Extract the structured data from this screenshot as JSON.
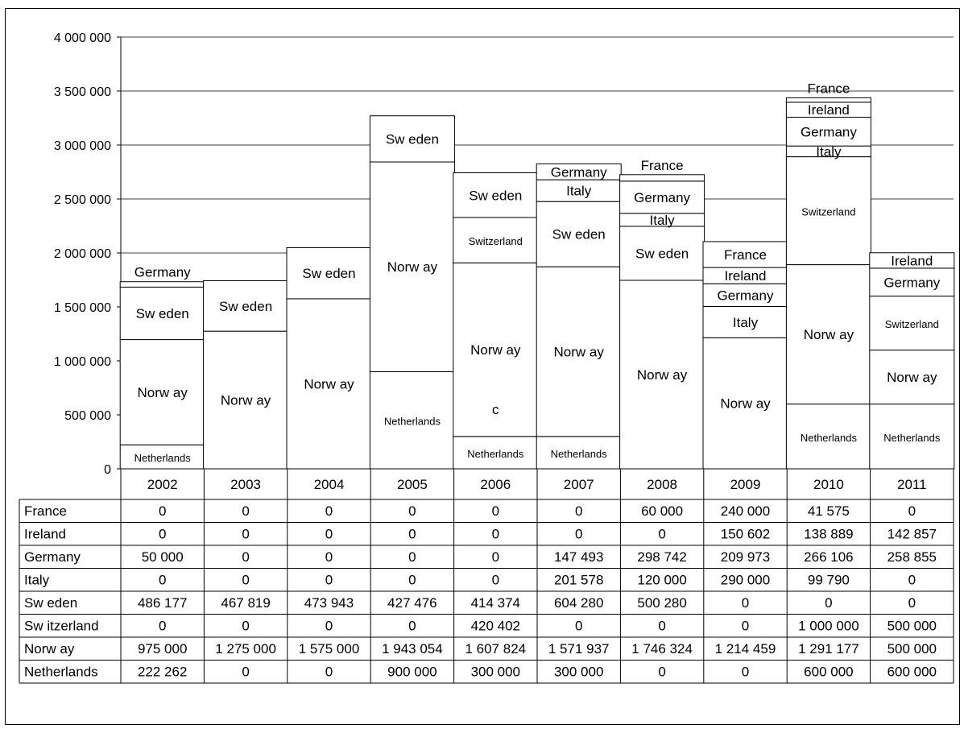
{
  "chart_data": {
    "type": "bar",
    "stacked": true,
    "categories": [
      "2002",
      "2003",
      "2004",
      "2005",
      "2006",
      "2007",
      "2008",
      "2009",
      "2010",
      "2011"
    ],
    "ylim": [
      0,
      4000000
    ],
    "yticks": [
      0,
      500000,
      1000000,
      1500000,
      2000000,
      2500000,
      3000000,
      3500000,
      4000000
    ],
    "ytick_labels": [
      "0",
      "500 000",
      "1 000 000",
      "1 500 000",
      "2 000 000",
      "2 500 000",
      "3 000 000",
      "3 500 000",
      "4 000 000"
    ],
    "grid": true,
    "series": [
      {
        "name": "Netherlands",
        "values": [
          222262,
          0,
          0,
          900000,
          300000,
          300000,
          0,
          0,
          600000,
          600000
        ],
        "value_labels": [
          "222 262",
          "0",
          "0",
          "900 000",
          "300 000",
          "300 000",
          "0",
          "0",
          "600 000",
          "600 000"
        ]
      },
      {
        "name": "Norw ay",
        "values": [
          975000,
          1275000,
          1575000,
          1943054,
          1607824,
          1571937,
          1746324,
          1214459,
          1291177,
          500000
        ],
        "value_labels": [
          "975 000",
          "1 275 000",
          "1 575 000",
          "1 943 054",
          "1 607 824",
          "1 571 937",
          "1 746 324",
          "1 214 459",
          "1 291 177",
          "500 000"
        ]
      },
      {
        "name": "Sw itzerland",
        "values": [
          0,
          0,
          0,
          0,
          420402,
          0,
          0,
          0,
          1000000,
          500000
        ],
        "value_labels": [
          "0",
          "0",
          "0",
          "0",
          "420 402",
          "0",
          "0",
          "0",
          "1 000 000",
          "500 000"
        ]
      },
      {
        "name": "Sw eden",
        "values": [
          486177,
          467819,
          473943,
          427476,
          414374,
          604280,
          500280,
          0,
          0,
          0
        ],
        "value_labels": [
          "486 177",
          "467 819",
          "473 943",
          "427 476",
          "414 374",
          "604 280",
          "500 280",
          "0",
          "0",
          "0"
        ]
      },
      {
        "name": "Italy",
        "values": [
          0,
          0,
          0,
          0,
          0,
          201578,
          120000,
          290000,
          99790,
          0
        ],
        "value_labels": [
          "0",
          "0",
          "0",
          "0",
          "0",
          "201 578",
          "120 000",
          "290 000",
          "99 790",
          "0"
        ]
      },
      {
        "name": "Germany",
        "values": [
          50000,
          0,
          0,
          0,
          0,
          147493,
          298742,
          209973,
          266106,
          258855
        ],
        "value_labels": [
          "50 000",
          "0",
          "0",
          "0",
          "0",
          "147 493",
          "298 742",
          "209 973",
          "266 106",
          "258 855"
        ]
      },
      {
        "name": "Ireland",
        "values": [
          0,
          0,
          0,
          0,
          0,
          0,
          0,
          150602,
          138889,
          142857
        ],
        "value_labels": [
          "0",
          "0",
          "0",
          "0",
          "0",
          "0",
          "0",
          "150 602",
          "138 889",
          "142 857"
        ]
      },
      {
        "name": "France",
        "values": [
          0,
          0,
          0,
          0,
          0,
          0,
          60000,
          240000,
          41575,
          0
        ],
        "value_labels": [
          "0",
          "0",
          "0",
          "0",
          "0",
          "0",
          "60 000",
          "240 000",
          "41 575",
          "0"
        ]
      }
    ],
    "table_row_order": [
      "France",
      "Ireland",
      "Germany",
      "Italy",
      "Sw eden",
      "Sw itzerland",
      "Norw ay",
      "Netherlands"
    ],
    "segment_labels": [
      {
        "year": "2002",
        "items": [
          {
            "series": "Netherlands",
            "text": "Netherlands"
          },
          {
            "series": "Norw ay",
            "text": "Norw ay"
          },
          {
            "series": "Sw eden",
            "text": "Sw eden"
          },
          {
            "series": "Germany",
            "text": "Germany",
            "above": true
          }
        ]
      },
      {
        "year": "2003",
        "items": [
          {
            "series": "Norw ay",
            "text": "Norw ay"
          },
          {
            "series": "Sw eden",
            "text": "Sw eden"
          }
        ]
      },
      {
        "year": "2004",
        "items": [
          {
            "series": "Norw ay",
            "text": "Norw ay"
          },
          {
            "series": "Sw eden",
            "text": "Sw eden"
          }
        ]
      },
      {
        "year": "2005",
        "items": [
          {
            "series": "Netherlands",
            "text": "Netherlands"
          },
          {
            "series": "Norw ay",
            "text": "Norw ay"
          },
          {
            "series": "Sw eden",
            "text": "Sw eden"
          }
        ]
      },
      {
        "year": "2006",
        "items": [
          {
            "series": "Netherlands",
            "text": "Netherlands"
          },
          {
            "series": "Norw ay",
            "text": "c",
            "low": true
          },
          {
            "series": "Norw ay",
            "text": "Norw ay"
          },
          {
            "series": "Sw itzerland",
            "text": "Switzerland"
          },
          {
            "series": "Sw eden",
            "text": "Sw eden"
          }
        ]
      },
      {
        "year": "2007",
        "items": [
          {
            "series": "Netherlands",
            "text": "Netherlands"
          },
          {
            "series": "Norw ay",
            "text": "Norw ay"
          },
          {
            "series": "Sw eden",
            "text": "Sw eden"
          },
          {
            "series": "Italy",
            "text": "Italy"
          },
          {
            "series": "Germany",
            "text": "Germany"
          }
        ]
      },
      {
        "year": "2008",
        "items": [
          {
            "series": "Norw ay",
            "text": "Norw ay"
          },
          {
            "series": "Sw eden",
            "text": "Sw eden"
          },
          {
            "series": "Italy",
            "text": "Italy"
          },
          {
            "series": "Germany",
            "text": "Germany"
          },
          {
            "series": "France",
            "text": "France",
            "above": true
          }
        ]
      },
      {
        "year": "2009",
        "items": [
          {
            "series": "Norw ay",
            "text": "Norw ay"
          },
          {
            "series": "Italy",
            "text": "Italy"
          },
          {
            "series": "Germany",
            "text": "Germany"
          },
          {
            "series": "Ireland",
            "text": "Ireland"
          },
          {
            "series": "France",
            "text": "France"
          }
        ]
      },
      {
        "year": "2010",
        "items": [
          {
            "series": "Netherlands",
            "text": "Netherlands"
          },
          {
            "series": "Norw ay",
            "text": "Norw ay"
          },
          {
            "series": "Sw itzerland",
            "text": "Switzerland"
          },
          {
            "series": "Italy",
            "text": "Italy"
          },
          {
            "series": "Germany",
            "text": "Germany"
          },
          {
            "series": "Ireland",
            "text": "Ireland"
          },
          {
            "series": "France",
            "text": "France",
            "above": true
          }
        ]
      },
      {
        "year": "2011",
        "items": [
          {
            "series": "Netherlands",
            "text": "Netherlands"
          },
          {
            "series": "Norw ay",
            "text": "Norw ay"
          },
          {
            "series": "Sw itzerland",
            "text": "Switzerland"
          },
          {
            "series": "Germany",
            "text": "Germany"
          },
          {
            "series": "Ireland",
            "text": "Ireland"
          }
        ]
      }
    ],
    "colors": {
      "bar_fill": "#ffffff",
      "bar_stroke": "#000000",
      "grid": "#000000",
      "text": "#000000"
    }
  }
}
